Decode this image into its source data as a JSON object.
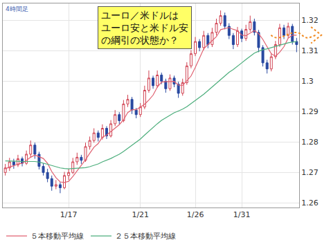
{
  "chart_data": {
    "type": "candlestick",
    "title": "4時間足",
    "annotation": [
      "ユーロ／米ドルは",
      "ユーロ安と米ドル安",
      "の綱引の状態か？"
    ],
    "categories": [
      null,
      null,
      null,
      null,
      null,
      null,
      null,
      null,
      null,
      null,
      null,
      null,
      null,
      null,
      null,
      "1/17",
      null,
      null,
      null,
      null,
      null,
      null,
      null,
      null,
      null,
      null,
      null,
      null,
      null,
      null,
      null,
      null,
      "1/21",
      null,
      null,
      null,
      null,
      null,
      null,
      null,
      null,
      null,
      null,
      null,
      null,
      "1/26",
      null,
      null,
      null,
      null,
      null,
      null,
      null,
      null,
      null,
      null,
      "1/31",
      null,
      null,
      null,
      null,
      null,
      null,
      null,
      null,
      null,
      null,
      null,
      null,
      null
    ],
    "open": [
      1.27,
      1.2715,
      1.2735,
      1.2725,
      1.2745,
      1.273,
      1.276,
      1.279,
      1.276,
      1.272,
      1.27,
      1.268,
      1.2655,
      1.266,
      1.265,
      1.269,
      1.27,
      1.2735,
      1.275,
      1.274,
      1.2785,
      1.2805,
      1.283,
      1.2815,
      1.2845,
      1.282,
      1.286,
      1.289,
      1.287,
      1.2925,
      1.294,
      1.2905,
      1.289,
      1.2915,
      1.297,
      1.301,
      1.2985,
      1.302,
      1.3,
      1.2975,
      1.301,
      1.299,
      1.296,
      1.2995,
      1.305,
      1.309,
      1.313,
      1.311,
      1.315,
      1.312,
      1.316,
      1.319,
      1.3215,
      1.318,
      1.315,
      1.312,
      1.3165,
      1.314,
      1.317,
      1.3195,
      1.316,
      1.311,
      1.306,
      1.304,
      1.308,
      1.312,
      1.3175,
      1.315,
      1.318,
      1.313
    ],
    "high": [
      1.2728,
      1.2748,
      1.2745,
      1.2758,
      1.2752,
      1.2772,
      1.2805,
      1.2798,
      1.2768,
      1.273,
      1.2712,
      1.269,
      1.2675,
      1.2668,
      1.2702,
      1.2712,
      1.2748,
      1.2765,
      1.2758,
      1.2798,
      1.2818,
      1.2845,
      1.2838,
      1.2858,
      1.2852,
      1.2872,
      1.2905,
      1.2898,
      1.2938,
      1.2955,
      1.2948,
      1.2912,
      1.2928,
      1.2985,
      1.3035,
      1.3018,
      1.3035,
      1.3028,
      1.3008,
      1.3022,
      1.3018,
      1.2998,
      1.3008,
      1.3062,
      1.3102,
      1.3145,
      1.3138,
      1.3165,
      1.3158,
      1.3175,
      1.3205,
      1.3232,
      1.3225,
      1.319,
      1.3158,
      1.3178,
      1.3172,
      1.3185,
      1.3215,
      1.3205,
      1.3168,
      1.3118,
      1.307,
      1.3092,
      1.3132,
      1.3188,
      1.3185,
      1.3192,
      1.3188,
      1.3142
    ],
    "low": [
      1.269,
      1.2705,
      1.2712,
      1.2718,
      1.272,
      1.2725,
      1.275,
      1.2745,
      1.271,
      1.269,
      1.2668,
      1.264,
      1.2645,
      1.2632,
      1.2645,
      1.2675,
      1.2695,
      1.2725,
      1.2728,
      1.2735,
      1.2775,
      1.2798,
      1.2802,
      1.2808,
      1.281,
      1.2815,
      1.2852,
      1.2858,
      1.2865,
      1.2915,
      1.2892,
      1.2878,
      1.2882,
      1.2908,
      1.2962,
      1.2975,
      1.2978,
      1.299,
      1.2962,
      1.2968,
      1.298,
      1.2945,
      1.2952,
      1.2988,
      1.3042,
      1.3082,
      1.3098,
      1.3102,
      1.3108,
      1.3112,
      1.315,
      1.3182,
      1.317,
      1.3138,
      1.3105,
      1.3112,
      1.3128,
      1.3132,
      1.3162,
      1.315,
      1.3095,
      1.3048,
      1.3025,
      1.3032,
      1.3072,
      1.3112,
      1.3138,
      1.3142,
      1.312,
      1.3095
    ],
    "close": [
      1.2715,
      1.2735,
      1.2725,
      1.2745,
      1.273,
      1.276,
      1.279,
      1.276,
      1.272,
      1.27,
      1.268,
      1.2655,
      1.266,
      1.265,
      1.269,
      1.27,
      1.2735,
      1.275,
      1.274,
      1.2785,
      1.2805,
      1.283,
      1.2815,
      1.2845,
      1.282,
      1.286,
      1.289,
      1.287,
      1.2925,
      1.294,
      1.2905,
      1.289,
      1.2915,
      1.297,
      1.301,
      1.2985,
      1.302,
      1.3,
      1.2975,
      1.301,
      1.299,
      1.296,
      1.2995,
      1.305,
      1.309,
      1.313,
      1.311,
      1.315,
      1.312,
      1.316,
      1.319,
      1.3215,
      1.318,
      1.315,
      1.312,
      1.3165,
      1.314,
      1.317,
      1.3195,
      1.316,
      1.311,
      1.306,
      1.304,
      1.308,
      1.312,
      1.3175,
      1.315,
      1.318,
      1.313,
      1.312
    ],
    "series": [
      {
        "name": "５本移動平均線",
        "color": "#e06070",
        "type": "line",
        "values": [
          1.2712,
          1.2718,
          1.2722,
          1.2728,
          1.273,
          1.2739,
          1.275,
          1.2757,
          1.2752,
          1.2746,
          1.273,
          1.2703,
          1.2683,
          1.2669,
          1.2667,
          1.2671,
          1.2687,
          1.2705,
          1.2723,
          1.2742,
          1.2763,
          1.2783,
          1.2795,
          1.2816,
          1.2823,
          1.2834,
          1.2846,
          1.2857,
          1.2873,
          1.2897,
          1.2906,
          1.2906,
          1.2915,
          1.2924,
          1.2938,
          1.2954,
          1.298,
          1.2997,
          1.2998,
          1.2998,
          1.2999,
          1.2987,
          1.2986,
          1.3001,
          1.3017,
          1.3045,
          1.3075,
          1.3106,
          1.312,
          1.3134,
          1.3146,
          1.3169,
          1.3173,
          1.3176,
          1.317,
          1.3166,
          1.3151,
          1.3149,
          1.3158,
          1.3166,
          1.3156,
          1.3137,
          1.3113,
          1.309,
          1.3082,
          1.3095,
          1.3113,
          1.3141,
          1.3151,
          1.3151
        ]
      },
      {
        "name": "２５本移動平均線",
        "color": "#4cae7c",
        "type": "line",
        "values": [
          1.2738,
          1.2738,
          1.2737,
          1.2737,
          1.2736,
          1.2736,
          1.2737,
          1.2736,
          1.2734,
          1.2731,
          1.2727,
          1.2723,
          1.2719,
          1.2715,
          1.2713,
          1.2712,
          1.2713,
          1.2714,
          1.2714,
          1.2716,
          1.2719,
          1.2724,
          1.2728,
          1.2735,
          1.274,
          1.2746,
          1.2753,
          1.276,
          1.2769,
          1.2779,
          1.2789,
          1.2799,
          1.281,
          1.2823,
          1.2836,
          1.2848,
          1.286,
          1.2871,
          1.288,
          1.2889,
          1.2896,
          1.2902,
          1.2908,
          1.2916,
          1.2926,
          1.2936,
          1.2946,
          1.2957,
          1.2969,
          1.2981,
          1.2993,
          1.3006,
          1.3018,
          1.3029,
          1.3038,
          1.3048,
          1.306,
          1.3071,
          1.3082,
          1.3092,
          1.3098,
          1.3103,
          1.3106,
          1.311,
          1.3114,
          1.3119,
          1.3123,
          1.3126,
          1.3128,
          1.313
        ]
      }
    ],
    "ylim": [
      1.2585,
      1.3255
    ],
    "yticks": [
      1.26,
      1.27,
      1.28,
      1.29,
      1.3,
      1.31,
      1.32
    ],
    "grid": true,
    "legend": "bottom"
  }
}
